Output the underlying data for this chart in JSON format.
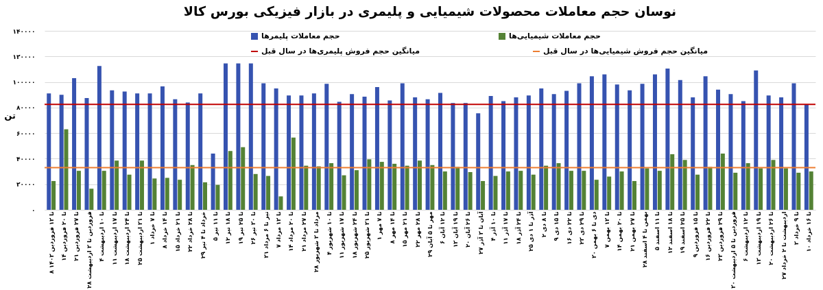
{
  "chart_data": {
    "type": "bar",
    "title": "نوسان حجم معاملات محصولات شیمیایی و پلیمری در بازار فیزیکی بورس کالا",
    "ylabel": "تن",
    "categories": [
      "۸ تا ۱۳ فروردین ۱۴۰۳",
      "۱۴ تا ۲۰ فروردین",
      "۲۱ تا ۲۷ فروردین",
      "۲۸ فروردین تا ۳ اردیبهشت",
      "۴ تا ۱۰ اردیبهشت",
      "۱۱ تا ۱۷ اردیبهشت",
      "۱۸ تا ۲۴ اردیبهشت",
      "۲۵ تا ۳۱ اردیبهشت",
      "۱ تا ۷ خرداد",
      "۸ تا ۱۴ خرداد",
      "۱۵ تا ۲۱ خرداد",
      "۲۲ تا ۲۸ خرداد",
      "۲۹ خرداد تا ۴ تیر",
      "۵ تا ۱۱ تیر",
      "۱۲ تا ۱۸ تیر",
      "۱۹ تا ۲۵ تیر",
      "۲۶ تا ۳۰ تیر",
      "۳۱ تیر تا ۶ مرداد",
      "۷ تا ۱۳ مرداد",
      "۱۴ تا ۲۰ مرداد",
      "۲۱ تا ۲۷ مرداد",
      "۲۸ مرداد تا ۳ شهریور",
      "۴ تا ۱۰ شهریور",
      "۱۱ تا ۱۷ شهریور",
      "۱۸ تا ۲۴ شهریور",
      "۲۵ تا ۳۱ شهریور",
      "۱ تا ۷ مهر",
      "۸ تا ۱۴ مهر",
      "۱۵ تا ۲۱ مهر",
      "۲۲ تا ۲۸ مهر",
      "۲۹ مهر تا ۵ آبان",
      "۶ تا ۱۲ آبان",
      "۱۳ تا ۱۹ آبان",
      "۲۰ تا ۲۶ آبان",
      "۲۷ آبان تا ۳ آذر",
      "۴ تا ۱۰ آذر",
      "۱۱ تا ۱۷ آذر",
      "۱۸ تا ۲۴ آذر",
      "۲۵ آذر تا ۱ دی",
      "۲ تا ۸ دی",
      "۹ تا ۱۵ دی",
      "۱۶ تا ۲۲ دی",
      "۲۳ تا ۲۹ دی",
      "۳۰ دی تا ۶ بهمن",
      "۷ تا ۱۳ بهمن",
      "۱۴ تا ۲۰ بهمن",
      "۲۱ تا ۲۷ بهمن",
      "۲۸ بهمن تا ۴ اسفند",
      "۵ تا ۱۱ اسفند",
      "۱۲ تا ۱۸ اسفند",
      "۱۹ تا ۲۵ اسفند",
      "۹ تا ۱۵ فروردین",
      "۱۶ تا ۲۲ فروردین",
      "۲۳ تا ۲۹ فروردین",
      "۳۰ فروردین تا ۵ اردیبهشت",
      "۶ تا ۱۲ اردیبهشت",
      "۱۳ تا ۱۹ اردیبهشت",
      "۲۰ تا ۲۶ اردیبهشت",
      "۲۷ اردیبهشت تا ۲ خرداد",
      "۳ تا ۹ خرداد",
      "۱۰ تا ۱۶ خرداد"
    ],
    "series": [
      {
        "name": "حجم معاملات پلیمرها",
        "color": "#3653b0",
        "values": [
          91000,
          90000,
          103000,
          87500,
          112500,
          93500,
          92500,
          91000,
          91000,
          96500,
          86500,
          84000,
          91000,
          44000,
          114500,
          114500,
          114500,
          99000,
          95000,
          89500,
          89500,
          91000,
          98500,
          84500,
          90500,
          88500,
          96000,
          85500,
          99000,
          88000,
          86500,
          91500,
          83500,
          83500,
          75500,
          89000,
          85000,
          88000,
          89500,
          95000,
          90500,
          93000,
          99000,
          104500,
          106000,
          98000,
          93500,
          98500,
          106000,
          110500,
          101500,
          88000,
          104500,
          94000,
          90500,
          85000,
          109000,
          89500,
          88000,
          99000,
          82500
        ]
      },
      {
        "name": "حجم معاملات شیمیایی‌ها",
        "color": "#548235",
        "values": [
          22500,
          63000,
          30500,
          16500,
          30500,
          38500,
          27500,
          38500,
          24500,
          25000,
          23500,
          35000,
          21500,
          19500,
          46000,
          49000,
          28000,
          26500,
          10500,
          56500,
          34500,
          34000,
          36500,
          27000,
          31000,
          39500,
          37500,
          36000,
          34500,
          38500,
          35000,
          30000,
          33500,
          29500,
          22500,
          26500,
          30000,
          30500,
          27500,
          34500,
          36500,
          30500,
          30500,
          23500,
          26000,
          30000,
          22500,
          32500,
          30500,
          43500,
          39000,
          27500,
          33500,
          44000,
          29000,
          36500,
          32500,
          39000,
          32500,
          29000,
          30000
        ]
      }
    ],
    "ref_lines": [
      {
        "axis": "y",
        "value": 82500,
        "label": "میانگین حجم فروش پلیمری‌ها در سال قبل",
        "color": "#c00000"
      },
      {
        "axis": "y",
        "value": 33000,
        "label": "میانگین حجم فروش شیمیایی‌ها در سال قبل",
        "color": "#ed7d31"
      }
    ],
    "ylim": [
      0,
      140000
    ],
    "yticks": [
      {
        "value": 0,
        "label": "۰"
      },
      {
        "value": 20000,
        "label": "۲۰۰۰۰"
      },
      {
        "value": 40000,
        "label": "۴۰۰۰۰"
      },
      {
        "value": 60000,
        "label": "۶۰۰۰۰"
      },
      {
        "value": 80000,
        "label": "۸۰۰۰۰"
      },
      {
        "value": 100000,
        "label": "۱۰۰۰۰۰"
      },
      {
        "value": 120000,
        "label": "۱۲۰۰۰۰"
      },
      {
        "value": 140000,
        "label": "۱۴۰۰۰۰"
      }
    ],
    "grid": "y",
    "legend": "top"
  }
}
